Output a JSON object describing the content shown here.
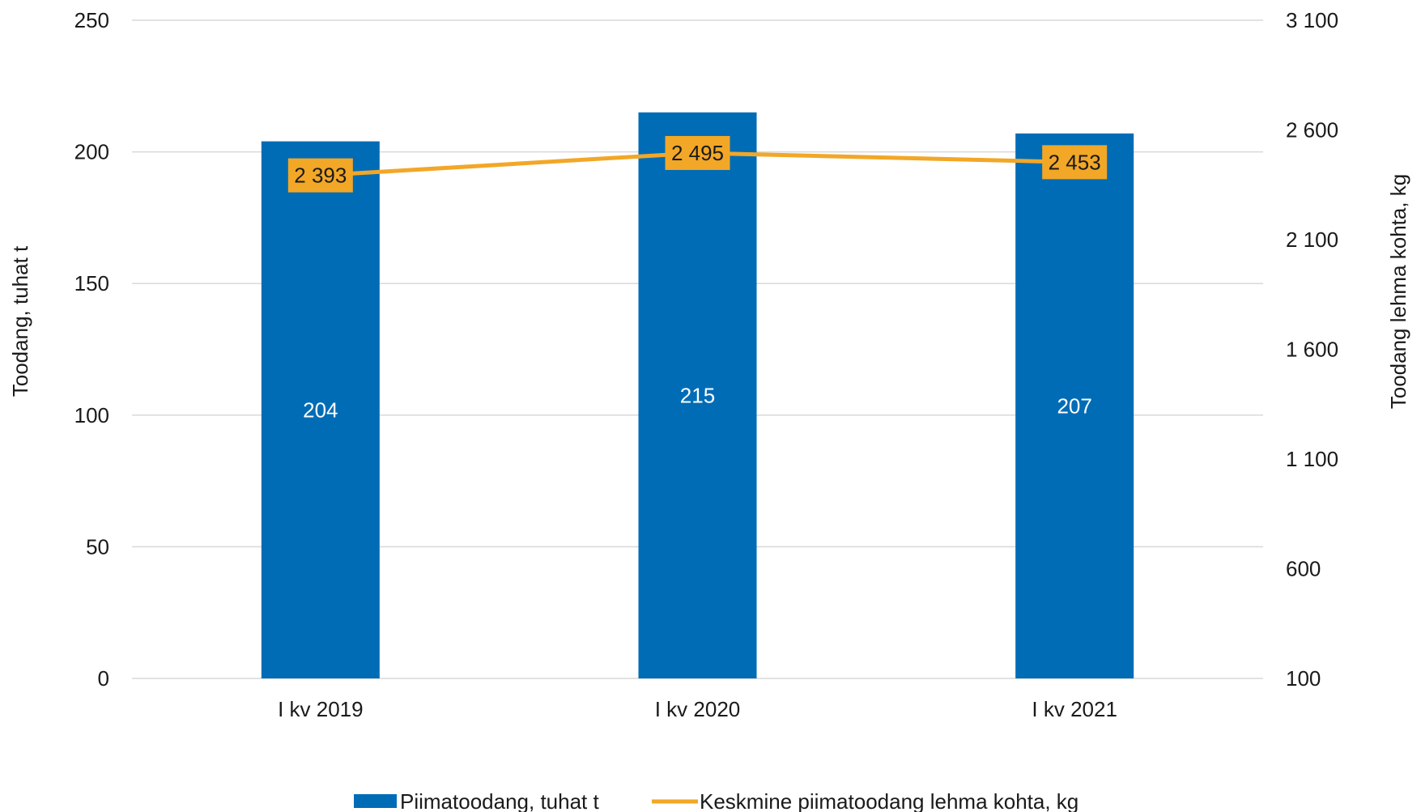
{
  "chart_data": {
    "type": "bar",
    "categories": [
      "I kv 2019",
      "I kv 2020",
      "I kv 2021"
    ],
    "series": [
      {
        "name": "Piimatoodang, tuhat t",
        "type": "bar",
        "axis": "left",
        "values": [
          204,
          215,
          207
        ],
        "labels": [
          "204",
          "215",
          "207"
        ],
        "color": "#006cb6"
      },
      {
        "name": "Keskmine piimatoodang lehma kohta, kg",
        "type": "line",
        "axis": "right",
        "values": [
          2393,
          2495,
          2453
        ],
        "labels": [
          "2 393",
          "2 495",
          "2 453"
        ],
        "color": "#f2a727"
      }
    ],
    "ylabel": "Toodang, tuhat t",
    "y2label": "Toodang lehma kohta, kg",
    "ylim": [
      0,
      250
    ],
    "y2lim": [
      100,
      3100
    ],
    "yticks": [
      0,
      50,
      100,
      150,
      200,
      250
    ],
    "y2ticks": [
      100,
      600,
      1100,
      1600,
      2100,
      2600,
      3100
    ],
    "ytick_labels": [
      "0",
      "50",
      "100",
      "150",
      "200",
      "250"
    ],
    "y2tick_labels": [
      "100",
      "600",
      "1 100",
      "1 600",
      "2 100",
      "2 600",
      "3 100"
    ],
    "grid": true,
    "legend_position": "bottom",
    "gridline_color": "#d9d9d9"
  }
}
